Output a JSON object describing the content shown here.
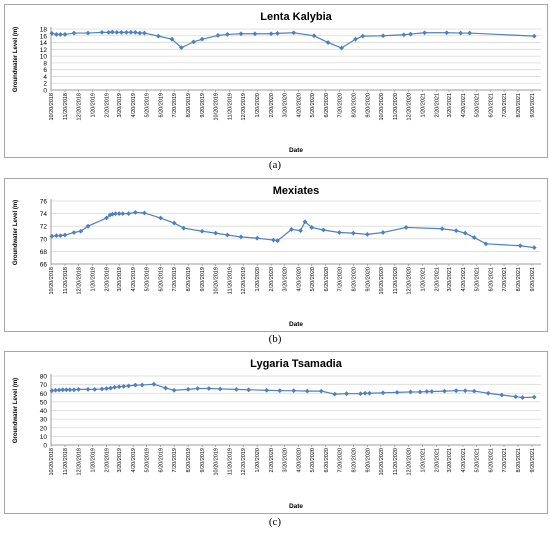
{
  "chart_data": [
    {
      "type": "line",
      "title": "Lenta Kalybia",
      "xlabel": "Date",
      "ylabel": "Groundwater Level (m)",
      "ylim": [
        0,
        18
      ],
      "yticks": [
        0,
        2,
        4,
        6,
        8,
        10,
        12,
        14,
        16,
        18
      ],
      "xlim": [
        "2018-10-20",
        "2021-10-10"
      ],
      "x_tick_labels": [
        "10/20/2018",
        "11/20/2018",
        "12/20/2018",
        "1/20/2019",
        "2/20/2019",
        "3/20/2019",
        "4/20/2019",
        "5/20/2019",
        "6/20/2019",
        "7/20/2019",
        "8/20/2019",
        "9/20/2019",
        "10/20/2019",
        "11/20/2019",
        "12/20/2019",
        "1/20/2020",
        "2/20/2020",
        "3/20/2020",
        "4/20/2020",
        "5/20/2020",
        "6/20/2020",
        "7/20/2020",
        "8/20/2020",
        "9/20/2020",
        "10/20/2020",
        "11/20/2020",
        "12/20/2020",
        "1/20/2021",
        "2/20/2021",
        "3/20/2021",
        "4/20/2021",
        "5/20/2021",
        "6/20/2021",
        "7/20/2021",
        "8/20/2021",
        "9/20/2021"
      ],
      "grid": true,
      "series": [
        {
          "x": [
            "2018-10-22",
            "2018-11-01",
            "2018-11-10",
            "2018-11-20",
            "2018-12-10",
            "2019-01-10",
            "2019-02-10",
            "2019-02-25",
            "2019-03-05",
            "2019-03-15",
            "2019-03-25",
            "2019-04-05",
            "2019-04-15",
            "2019-04-25",
            "2019-05-05",
            "2019-05-15",
            "2019-06-15",
            "2019-07-15",
            "2019-08-05",
            "2019-09-01",
            "2019-09-20",
            "2019-10-25",
            "2019-11-15",
            "2019-12-15",
            "2020-01-15",
            "2020-02-20",
            "2020-03-05",
            "2020-04-10",
            "2020-05-25",
            "2020-06-25",
            "2020-07-25",
            "2020-08-25",
            "2020-09-10",
            "2020-10-25",
            "2020-12-10",
            "2020-12-25",
            "2021-01-25",
            "2021-03-15",
            "2021-04-15",
            "2021-05-05",
            "2021-09-25"
          ],
          "y": [
            16.7,
            16.4,
            16.4,
            16.4,
            16.8,
            16.8,
            17.0,
            17.0,
            17.1,
            17.0,
            17.0,
            17.0,
            17.0,
            17.0,
            16.8,
            16.8,
            15.9,
            15.0,
            12.5,
            14.2,
            15.0,
            16.1,
            16.4,
            16.6,
            16.6,
            16.6,
            16.7,
            16.9,
            16.0,
            14.0,
            12.4,
            15.0,
            15.9,
            16.0,
            16.3,
            16.5,
            16.9,
            16.9,
            16.8,
            16.8,
            15.9
          ]
        }
      ]
    },
    {
      "type": "line",
      "title": "Mexiates",
      "xlabel": "Date",
      "ylabel": "Groundwater Level (m)",
      "ylim": [
        66,
        76
      ],
      "yticks": [
        66,
        68,
        70,
        72,
        74,
        76
      ],
      "xlim": [
        "2018-10-20",
        "2021-10-10"
      ],
      "x_tick_labels": [
        "10/20/2018",
        "11/20/2018",
        "12/20/2018",
        "1/20/2019",
        "2/20/2019",
        "3/20/2019",
        "4/20/2019",
        "5/20/2019",
        "6/20/2019",
        "7/20/2019",
        "8/20/2019",
        "9/20/2019",
        "10/20/2019",
        "11/20/2019",
        "12/20/2019",
        "1/20/2020",
        "2/20/2020",
        "3/20/2020",
        "4/20/2020",
        "5/20/2020",
        "6/20/2020",
        "7/20/2020",
        "8/20/2020",
        "9/20/2020",
        "10/20/2020",
        "11/20/2020",
        "12/20/2020",
        "1/20/2021",
        "2/20/2021",
        "3/20/2021",
        "4/20/2021",
        "5/20/2021",
        "6/20/2021",
        "7/20/2021",
        "8/20/2021",
        "9/20/2021"
      ],
      "grid": true,
      "series": [
        {
          "x": [
            "2018-10-22",
            "2018-11-01",
            "2018-11-10",
            "2018-11-20",
            "2018-12-10",
            "2018-12-25",
            "2019-01-10",
            "2019-02-20",
            "2019-02-28",
            "2019-03-05",
            "2019-03-12",
            "2019-03-20",
            "2019-03-28",
            "2019-04-10",
            "2019-04-25",
            "2019-05-15",
            "2019-06-20",
            "2019-07-20",
            "2019-08-10",
            "2019-09-20",
            "2019-10-20",
            "2019-11-15",
            "2019-12-15",
            "2020-01-20",
            "2020-02-25",
            "2020-03-05",
            "2020-04-05",
            "2020-04-25",
            "2020-05-05",
            "2020-05-20",
            "2020-06-15",
            "2020-07-20",
            "2020-08-20",
            "2020-09-20",
            "2020-10-25",
            "2020-12-15",
            "2021-03-05",
            "2021-04-05",
            "2021-04-25",
            "2021-05-15",
            "2021-06-10",
            "2021-08-25",
            "2021-09-25"
          ],
          "y": [
            70.4,
            70.5,
            70.5,
            70.6,
            71.0,
            71.2,
            72.0,
            73.3,
            73.8,
            73.9,
            74.0,
            74.0,
            74.0,
            74.0,
            74.2,
            74.1,
            73.3,
            72.5,
            71.7,
            71.2,
            70.9,
            70.6,
            70.3,
            70.1,
            69.8,
            69.7,
            71.5,
            71.3,
            72.7,
            71.8,
            71.4,
            71.0,
            70.9,
            70.7,
            71.0,
            71.8,
            71.6,
            71.3,
            70.9,
            70.2,
            69.2,
            68.9,
            68.6
          ]
        }
      ]
    },
    {
      "type": "line",
      "title": "Lygaria Tsamadia",
      "xlabel": "Date",
      "ylabel": "Groundwater Level (m)",
      "ylim": [
        0,
        80
      ],
      "yticks": [
        0,
        10,
        20,
        30,
        40,
        50,
        60,
        70,
        80
      ],
      "xlim": [
        "2018-10-20",
        "2021-10-10"
      ],
      "x_tick_labels": [
        "10/20/2018",
        "11/20/2018",
        "12/20/2018",
        "1/20/2019",
        "2/20/2019",
        "3/20/2019",
        "4/20/2019",
        "5/20/2019",
        "6/20/2019",
        "7/20/2019",
        "8/20/2019",
        "9/20/2019",
        "10/20/2019",
        "11/20/2019",
        "12/20/2019",
        "1/20/2020",
        "2/20/2020",
        "3/20/2020",
        "4/20/2020",
        "5/20/2020",
        "6/20/2020",
        "7/20/2020",
        "8/20/2020",
        "9/20/2020",
        "10/20/2020",
        "11/20/2020",
        "12/20/2020",
        "1/20/2021",
        "2/20/2021",
        "3/20/2021",
        "4/20/2021",
        "5/20/2021",
        "6/20/2021",
        "7/20/2021",
        "8/20/2021",
        "9/20/2021"
      ],
      "grid": true,
      "series": [
        {
          "x": [
            "2018-10-22",
            "2018-10-30",
            "2018-11-07",
            "2018-11-15",
            "2018-11-23",
            "2018-12-01",
            "2018-12-10",
            "2018-12-20",
            "2019-01-10",
            "2019-01-25",
            "2019-02-10",
            "2019-02-20",
            "2019-03-01",
            "2019-03-10",
            "2019-03-20",
            "2019-03-30",
            "2019-04-10",
            "2019-04-25",
            "2019-05-10",
            "2019-06-05",
            "2019-07-01",
            "2019-07-20",
            "2019-08-20",
            "2019-09-10",
            "2019-10-05",
            "2019-10-30",
            "2019-12-05",
            "2020-01-01",
            "2020-02-10",
            "2020-03-10",
            "2020-04-10",
            "2020-05-10",
            "2020-06-10",
            "2020-07-10",
            "2020-08-05",
            "2020-09-05",
            "2020-09-15",
            "2020-09-25",
            "2020-10-25",
            "2020-11-25",
            "2020-12-25",
            "2021-01-15",
            "2021-01-30",
            "2021-02-10",
            "2021-03-10",
            "2021-04-05",
            "2021-04-25",
            "2021-05-15",
            "2021-06-15",
            "2021-07-15",
            "2021-08-15",
            "2021-08-30",
            "2021-09-25"
          ],
          "y": [
            63,
            63.5,
            63.8,
            64,
            64,
            64,
            64,
            64.5,
            64.5,
            64.5,
            65,
            65.5,
            66,
            67,
            67.5,
            68,
            68.5,
            69.5,
            69.5,
            70.5,
            66,
            63.5,
            64.5,
            65.5,
            65.5,
            65,
            64.5,
            64,
            63.5,
            63,
            63,
            62.5,
            62.5,
            59,
            59.5,
            59.5,
            60,
            60,
            60.5,
            61,
            61.5,
            61.5,
            62,
            62,
            62.5,
            63,
            63,
            62.5,
            60,
            58,
            56,
            55,
            55.5
          ]
        }
      ]
    }
  ],
  "captions": [
    "(a)",
    "(b)",
    "(c)"
  ],
  "colors": {
    "line": "#4f81bd",
    "marker": "#4f81bd",
    "grid": "#d9d9d9",
    "axis": "#868686"
  }
}
